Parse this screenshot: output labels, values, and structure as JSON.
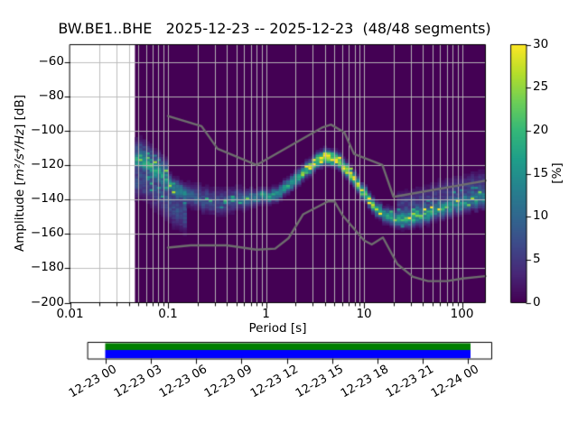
{
  "chart_data": {
    "type": "heatmap",
    "title": "BW.BE1..BHE   2025-12-23 -- 2025-12-23  (48/48 segments)",
    "xlabel": "Period [s]",
    "ylabel": {
      "prefix": "Amplitude [",
      "math": "m²/s⁴/Hz",
      "suffix": "] [dB]"
    },
    "xscale": "log",
    "xlim": [
      0.01,
      173.4
    ],
    "ylim": [
      -200,
      -50
    ],
    "grid": true,
    "grid_color": "#b9b9b9",
    "xticks": [
      {
        "v": 0.01,
        "label": "0.01"
      },
      {
        "v": 0.1,
        "label": "0.1"
      },
      {
        "v": 1,
        "label": "1"
      },
      {
        "v": 10,
        "label": "10"
      },
      {
        "v": 100,
        "label": "100"
      }
    ],
    "yticks": [
      {
        "v": -60,
        "label": "−60"
      },
      {
        "v": -80,
        "label": "−80"
      },
      {
        "v": -100,
        "label": "−100"
      },
      {
        "v": -120,
        "label": "−120"
      },
      {
        "v": -140,
        "label": "−140"
      },
      {
        "v": -160,
        "label": "−160"
      },
      {
        "v": -180,
        "label": "−180"
      },
      {
        "v": -200,
        "label": "−200"
      }
    ],
    "colormap": "viridis",
    "colorbar": {
      "label": "[%]",
      "range": [
        0,
        30
      ],
      "ticks": [
        {
          "v": 0,
          "label": "0"
        },
        {
          "v": 5,
          "label": "5"
        },
        {
          "v": 10,
          "label": "10"
        },
        {
          "v": 15,
          "label": "15"
        },
        {
          "v": 20,
          "label": "20"
        },
        {
          "v": 25,
          "label": "25"
        },
        {
          "v": 30,
          "label": "30"
        }
      ]
    },
    "histogram": {
      "background_color": "#440154",
      "period_range": [
        0.046,
        173.4
      ],
      "num_period_columns": 95,
      "db_bin_width": 1.25,
      "ridge_points": [
        [
          0.046,
          -116.5,
          2.6,
          19
        ],
        [
          0.058,
          -117.5,
          3.0,
          17
        ],
        [
          0.072,
          -123.0,
          3.2,
          15
        ],
        [
          0.09,
          -127.0,
          3.6,
          13
        ],
        [
          0.115,
          -133.5,
          3.0,
          14
        ],
        [
          0.15,
          -136.5,
          3.2,
          11
        ],
        [
          0.21,
          -139.5,
          4.2,
          8
        ],
        [
          0.3,
          -141.0,
          4.5,
          7
        ],
        [
          0.45,
          -140.5,
          4.0,
          8
        ],
        [
          0.62,
          -139.5,
          3.2,
          10
        ],
        [
          0.82,
          -138.8,
          2.6,
          13
        ],
        [
          1.05,
          -138.0,
          2.4,
          15
        ],
        [
          1.35,
          -135.8,
          2.4,
          16
        ],
        [
          1.75,
          -131.5,
          2.4,
          18
        ],
        [
          2.2,
          -126.5,
          2.4,
          21
        ],
        [
          2.8,
          -121.0,
          2.4,
          25
        ],
        [
          3.5,
          -116.8,
          2.4,
          29
        ],
        [
          4.4,
          -114.8,
          2.4,
          30
        ],
        [
          5.4,
          -117.2,
          2.4,
          30
        ],
        [
          6.7,
          -122.5,
          2.4,
          28
        ],
        [
          8.3,
          -130.0,
          2.4,
          26
        ],
        [
          10.3,
          -137.5,
          2.4,
          23
        ],
        [
          12.8,
          -143.8,
          2.4,
          21
        ],
        [
          16.0,
          -148.5,
          2.5,
          18
        ],
        [
          20.0,
          -150.8,
          2.7,
          16
        ],
        [
          26.0,
          -151.6,
          2.8,
          17
        ],
        [
          33.0,
          -150.2,
          3.0,
          19
        ],
        [
          42.0,
          -148.2,
          3.0,
          17
        ],
        [
          55.0,
          -146.2,
          3.0,
          16
        ],
        [
          70.0,
          -144.4,
          3.0,
          15
        ],
        [
          90.0,
          -142.8,
          3.1,
          15
        ],
        [
          115.0,
          -141.2,
          3.2,
          14
        ],
        [
          145.0,
          -140.2,
          3.2,
          14
        ],
        [
          173.0,
          -139.4,
          3.2,
          14
        ]
      ],
      "tails": [
        {
          "range": [
            0.046,
            0.15
          ],
          "offset": -12,
          "sigma": 6.0,
          "peak": 7
        },
        {
          "range": [
            0.046,
            0.1
          ],
          "offset": 7,
          "sigma": 3.5,
          "peak": 6
        },
        {
          "range": [
            22,
            173.4
          ],
          "offset": 9,
          "sigma": 4.5,
          "peak": 5
        }
      ]
    },
    "noise_models": {
      "color": "#6e6e6e",
      "high": [
        [
          0.1,
          -91.5
        ],
        [
          0.22,
          -97.4
        ],
        [
          0.32,
          -110.5
        ],
        [
          0.8,
          -120.0
        ],
        [
          3.8,
          -98.0
        ],
        [
          4.6,
          -96.5
        ],
        [
          6.3,
          -101.0
        ],
        [
          7.9,
          -113.5
        ],
        [
          15.4,
          -120.0
        ],
        [
          20.0,
          -138.5
        ],
        [
          173.4,
          -129.1
        ]
      ],
      "low": [
        [
          0.1,
          -168.0
        ],
        [
          0.17,
          -166.7
        ],
        [
          0.4,
          -166.7
        ],
        [
          0.8,
          -169.2
        ],
        [
          1.24,
          -168.6
        ],
        [
          1.7,
          -162.5
        ],
        [
          2.4,
          -148.6
        ],
        [
          4.3,
          -141.1
        ],
        [
          5.0,
          -141.1
        ],
        [
          6.0,
          -149.0
        ],
        [
          10.0,
          -163.8
        ],
        [
          12.0,
          -166.2
        ],
        [
          15.6,
          -162.1
        ],
        [
          21.9,
          -177.6
        ],
        [
          31.6,
          -185.0
        ],
        [
          45.0,
          -187.5
        ],
        [
          70.0,
          -187.5
        ],
        [
          101.0,
          -186.0
        ],
        [
          173.4,
          -184.6
        ]
      ]
    },
    "timeline": {
      "coverage_top_color": "#008000",
      "coverage_bottom_color": "#0000ff",
      "tick_labels": [
        "12-23 00",
        "12-23 03",
        "12-23 06",
        "12-23 09",
        "12-23 12",
        "12-23 15",
        "12-23 18",
        "12-23 21",
        "12-24 00"
      ]
    }
  }
}
